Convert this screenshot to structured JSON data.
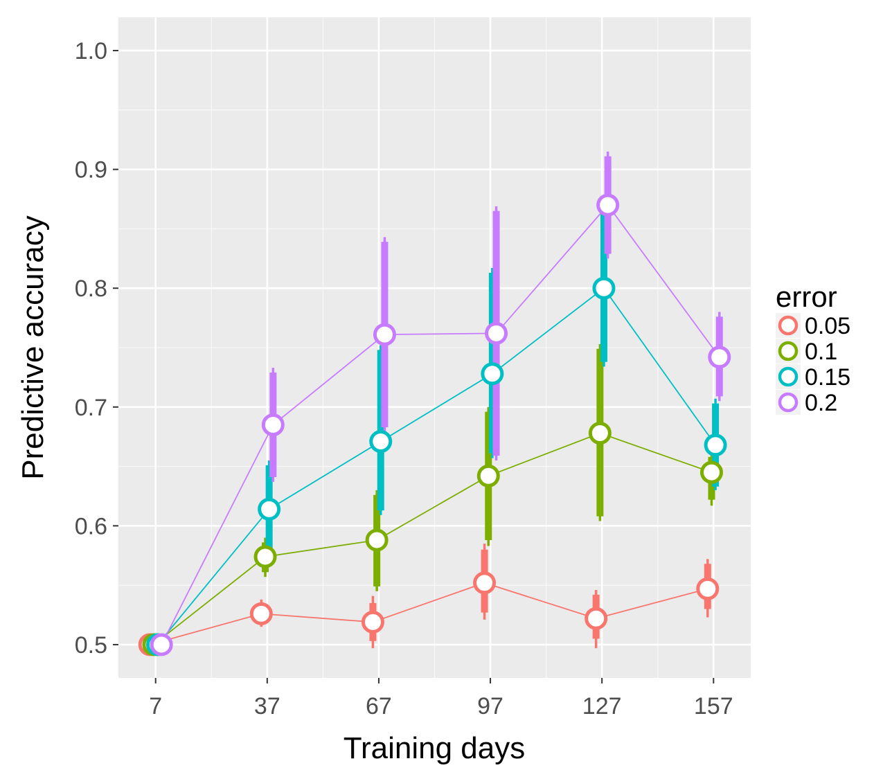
{
  "chart_data": {
    "type": "line",
    "xlabel": "Training days",
    "ylabel": "Predictive accuracy",
    "x": [
      7,
      37,
      67,
      97,
      127,
      157
    ],
    "x_tick_labels": [
      "7",
      "37",
      "67",
      "97",
      "127",
      "157"
    ],
    "y_tick_labels": [
      "0.5",
      "0.6",
      "0.7",
      "0.8",
      "0.9",
      "1.0"
    ],
    "y_ticks": [
      0.5,
      0.6,
      0.7,
      0.8,
      0.9,
      1.0
    ],
    "xlim": [
      -3,
      167
    ],
    "ylim": [
      0.472,
      1.028
    ],
    "grid": true,
    "legend_position": "right",
    "legend": {
      "title": "error",
      "entries": [
        "0.05",
        "0.1",
        "0.15",
        "0.2"
      ]
    },
    "series": [
      {
        "name": "0.05",
        "color": "#F8766D",
        "values": [
          0.5,
          0.526,
          0.519,
          0.552,
          0.522,
          0.547
        ],
        "range_thick": [
          [
            0.5,
            0.5
          ],
          [
            0.522,
            0.53
          ],
          [
            0.503,
            0.535
          ],
          [
            0.527,
            0.58
          ],
          [
            0.505,
            0.542
          ],
          [
            0.53,
            0.568
          ]
        ],
        "range_thin": [
          [
            0.5,
            0.5
          ],
          [
            0.515,
            0.538
          ],
          [
            0.497,
            0.541
          ],
          [
            0.521,
            0.585
          ],
          [
            0.497,
            0.546
          ],
          [
            0.523,
            0.572
          ]
        ]
      },
      {
        "name": "0.1",
        "color": "#7CAE00",
        "values": [
          0.5,
          0.574,
          0.588,
          0.642,
          0.678,
          0.645
        ],
        "range_thick": [
          [
            0.5,
            0.5
          ],
          [
            0.561,
            0.586
          ],
          [
            0.549,
            0.626
          ],
          [
            0.588,
            0.696
          ],
          [
            0.608,
            0.749
          ],
          [
            0.622,
            0.658
          ]
        ],
        "range_thin": [
          [
            0.5,
            0.5
          ],
          [
            0.557,
            0.59
          ],
          [
            0.545,
            0.63
          ],
          [
            0.583,
            0.7
          ],
          [
            0.604,
            0.753
          ],
          [
            0.617,
            0.662
          ]
        ]
      },
      {
        "name": "0.15",
        "color": "#00BFC4",
        "values": [
          0.5,
          0.614,
          0.671,
          0.728,
          0.8,
          0.668
        ],
        "range_thick": [
          [
            0.5,
            0.5
          ],
          [
            0.575,
            0.651
          ],
          [
            0.613,
            0.748
          ],
          [
            0.661,
            0.813
          ],
          [
            0.738,
            0.866
          ],
          [
            0.633,
            0.703
          ]
        ],
        "range_thin": [
          [
            0.5,
            0.5
          ],
          [
            0.571,
            0.655
          ],
          [
            0.609,
            0.752
          ],
          [
            0.657,
            0.817
          ],
          [
            0.734,
            0.87
          ],
          [
            0.63,
            0.707
          ]
        ]
      },
      {
        "name": "0.2",
        "color": "#C77CFF",
        "values": [
          0.5,
          0.685,
          0.761,
          0.762,
          0.87,
          0.742
        ],
        "range_thick": [
          [
            0.5,
            0.5
          ],
          [
            0.641,
            0.729
          ],
          [
            0.683,
            0.839
          ],
          [
            0.659,
            0.865
          ],
          [
            0.829,
            0.911
          ],
          [
            0.709,
            0.776
          ]
        ],
        "range_thin": [
          [
            0.5,
            0.5
          ],
          [
            0.637,
            0.733
          ],
          [
            0.679,
            0.843
          ],
          [
            0.655,
            0.869
          ],
          [
            0.825,
            0.915
          ],
          [
            0.705,
            0.78
          ]
        ]
      }
    ]
  }
}
